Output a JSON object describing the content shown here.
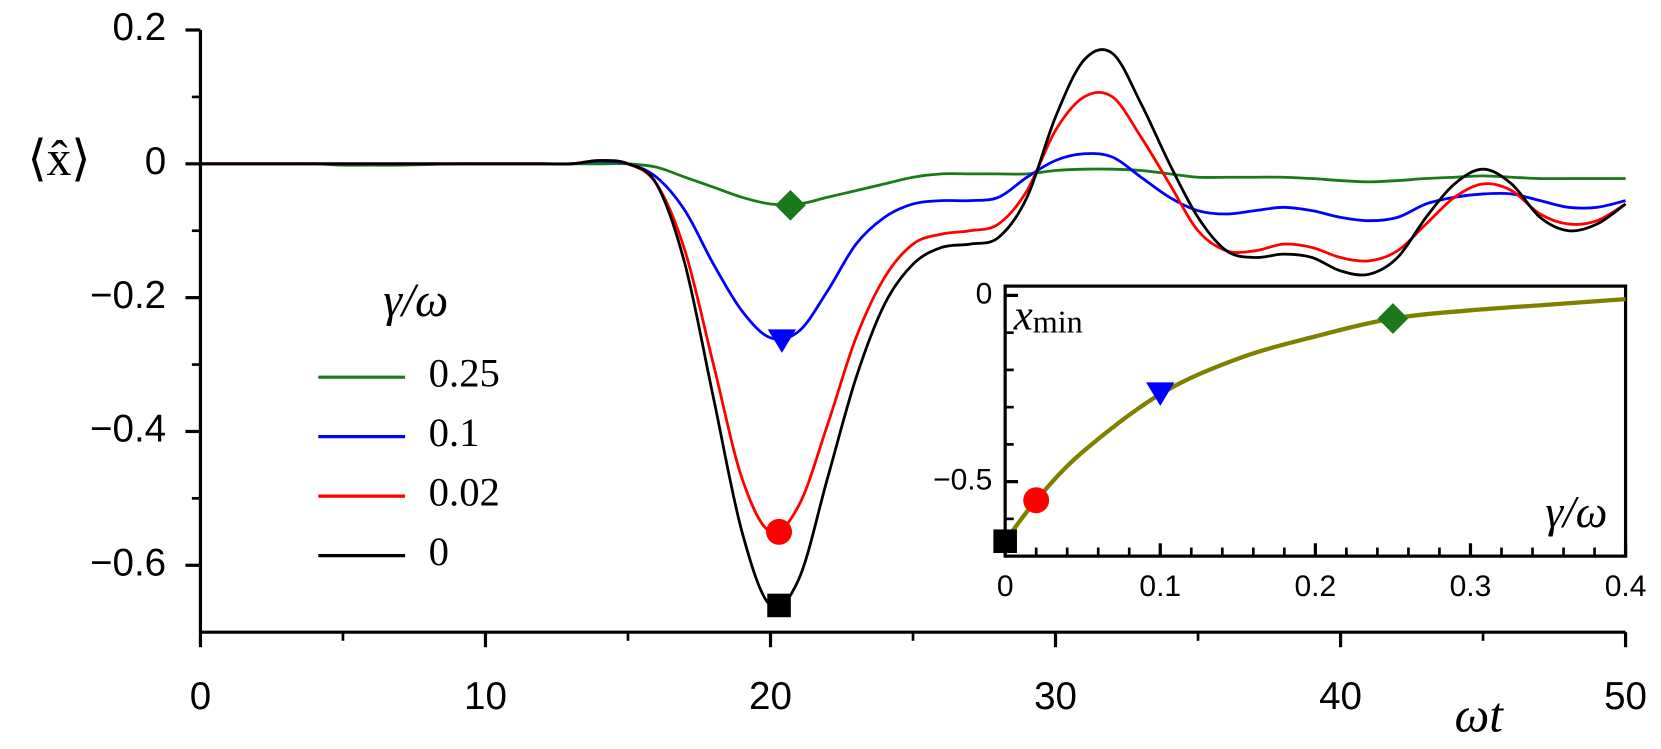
{
  "chart_data": [
    {
      "type": "line",
      "xlabel": "ωt",
      "ylabel": "⟨x̂⟩",
      "legend_title": "γ/ω",
      "x": [
        0,
        1,
        2,
        3,
        4,
        5,
        6,
        7,
        8,
        9,
        10,
        11,
        12,
        13,
        14,
        15,
        16,
        17,
        18,
        19,
        20,
        21,
        22,
        23,
        24,
        25,
        26,
        27,
        28,
        29,
        30,
        31,
        32,
        33,
        34,
        35,
        36,
        37,
        38,
        39,
        40,
        41,
        42,
        43,
        44,
        45,
        46,
        47,
        48,
        49,
        50
      ],
      "xlim": [
        0,
        50
      ],
      "ylim": [
        -0.7,
        0.2
      ],
      "xticks": [
        0,
        10,
        20,
        30,
        40,
        50
      ],
      "minor_xticks": [
        5,
        15,
        25,
        35,
        45
      ],
      "yticks": [
        0.2,
        0,
        {
          "value": -0.2,
          "label": "−0.2"
        },
        {
          "value": -0.4,
          "label": "−0.4"
        },
        {
          "value": -0.6,
          "label": "−0.6"
        }
      ],
      "minor_yticks": [
        0.1,
        -0.1,
        -0.3,
        -0.5
      ],
      "series": [
        {
          "name": "0.25",
          "color": "#1a7a1a",
          "values": [
            0,
            0,
            0,
            0,
            0,
            -0.002,
            -0.002,
            -0.002,
            -0.001,
            0,
            0,
            0,
            0,
            0,
            0,
            0,
            -0.005,
            -0.02,
            -0.035,
            -0.05,
            -0.06,
            -0.06,
            -0.05,
            -0.04,
            -0.03,
            -0.02,
            -0.015,
            -0.015,
            -0.015,
            -0.015,
            -0.01,
            -0.008,
            -0.008,
            -0.01,
            -0.015,
            -0.02,
            -0.02,
            -0.02,
            -0.02,
            -0.022,
            -0.025,
            -0.027,
            -0.025,
            -0.022,
            -0.02,
            -0.018,
            -0.02,
            -0.022,
            -0.022,
            -0.022,
            -0.022
          ]
        },
        {
          "name": "0.1",
          "color": "#0000ff",
          "values": [
            0,
            0,
            0,
            0,
            0,
            0,
            0,
            0,
            0,
            0,
            0,
            0,
            0,
            0,
            0.004,
            0,
            -0.02,
            -0.07,
            -0.15,
            -0.22,
            -0.26,
            -0.25,
            -0.19,
            -0.12,
            -0.08,
            -0.06,
            -0.055,
            -0.055,
            -0.05,
            -0.02,
            0.005,
            0.015,
            0.01,
            -0.02,
            -0.05,
            -0.07,
            -0.075,
            -0.07,
            -0.065,
            -0.07,
            -0.08,
            -0.085,
            -0.08,
            -0.06,
            -0.05,
            -0.045,
            -0.045,
            -0.055,
            -0.065,
            -0.065,
            -0.055
          ]
        },
        {
          "name": "0.02",
          "color": "#ff0000",
          "values": [
            0,
            0,
            0,
            0,
            0,
            0,
            0,
            0,
            0,
            0,
            0,
            0,
            0,
            0,
            0.005,
            0,
            -0.03,
            -0.13,
            -0.3,
            -0.47,
            -0.55,
            -0.51,
            -0.39,
            -0.26,
            -0.17,
            -0.12,
            -0.105,
            -0.1,
            -0.09,
            -0.04,
            0.05,
            0.1,
            0.1,
            0.04,
            -0.03,
            -0.1,
            -0.13,
            -0.13,
            -0.12,
            -0.125,
            -0.14,
            -0.145,
            -0.13,
            -0.09,
            -0.05,
            -0.03,
            -0.04,
            -0.075,
            -0.09,
            -0.085,
            -0.06
          ]
        },
        {
          "name": "0",
          "color": "#000000",
          "values": [
            0,
            0,
            0,
            0,
            0,
            0,
            0,
            0,
            0,
            0,
            0,
            0,
            0,
            0,
            0.005,
            0,
            -0.03,
            -0.15,
            -0.35,
            -0.55,
            -0.66,
            -0.62,
            -0.47,
            -0.32,
            -0.21,
            -0.15,
            -0.125,
            -0.12,
            -0.11,
            -0.05,
            0.07,
            0.155,
            0.165,
            0.09,
            0,
            -0.08,
            -0.13,
            -0.14,
            -0.135,
            -0.14,
            -0.16,
            -0.165,
            -0.14,
            -0.08,
            -0.03,
            -0.008,
            -0.03,
            -0.08,
            -0.1,
            -0.09,
            -0.06
          ]
        }
      ],
      "markers": [
        {
          "x": 20.7,
          "y": -0.062,
          "shape": "diamond",
          "color": "#1a7a1a"
        },
        {
          "x": 20.4,
          "y": -0.265,
          "shape": "triangle",
          "color": "#0000ff"
        },
        {
          "x": 20.3,
          "y": -0.55,
          "shape": "circle",
          "color": "#ff0000"
        },
        {
          "x": 20.3,
          "y": -0.66,
          "shape": "square",
          "color": "#000000"
        }
      ]
    },
    {
      "type": "line",
      "xlabel": "γ/ω",
      "ylabel": "x",
      "ylabel_sub": "min",
      "x": [
        0,
        0.02,
        0.05,
        0.1,
        0.15,
        0.2,
        0.25,
        0.3,
        0.35,
        0.4
      ],
      "xlim": [
        0,
        0.4
      ],
      "ylim": [
        -0.7,
        0.025
      ],
      "xticks": [
        0,
        0.1,
        0.2,
        0.3,
        0.4
      ],
      "minor_xticks": [
        0.02,
        0.04,
        0.06,
        0.08,
        0.12,
        0.14,
        0.16,
        0.18,
        0.22,
        0.24,
        0.26,
        0.28,
        0.32,
        0.34,
        0.36,
        0.38
      ],
      "yticks": [
        0,
        {
          "value": -0.5,
          "label": "−0.5"
        }
      ],
      "minor_yticks": [
        -0.1,
        -0.2,
        -0.3,
        -0.4,
        -0.6
      ],
      "series": [
        {
          "color": "#808000",
          "values": [
            -0.66,
            -0.55,
            -0.42,
            -0.265,
            -0.17,
            -0.11,
            -0.062,
            -0.04,
            -0.025,
            -0.01
          ]
        }
      ],
      "markers": [
        {
          "x": 0,
          "y": -0.66,
          "shape": "square",
          "color": "#000000"
        },
        {
          "x": 0.02,
          "y": -0.55,
          "shape": "circle",
          "color": "#ff0000"
        },
        {
          "x": 0.1,
          "y": -0.265,
          "shape": "triangle",
          "color": "#0000ff"
        },
        {
          "x": 0.25,
          "y": -0.062,
          "shape": "diamond",
          "color": "#1a7a1a"
        }
      ]
    }
  ]
}
